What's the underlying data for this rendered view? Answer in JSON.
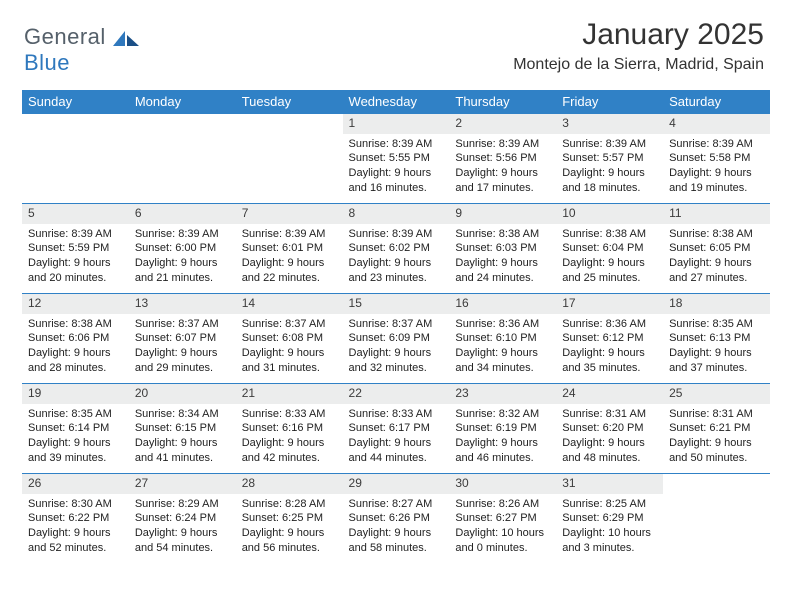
{
  "brand": {
    "part1": "General",
    "part2": "Blue"
  },
  "title": "January 2025",
  "location": "Montejo de la Sierra, Madrid, Spain",
  "colors": {
    "header_bg": "#3081c6",
    "header_text": "#ffffff",
    "daynum_bg": "#eceded",
    "rule": "#3081c6",
    "brand_gray": "#55606a",
    "brand_blue": "#2f78bd"
  },
  "weekday_labels": [
    "Sunday",
    "Monday",
    "Tuesday",
    "Wednesday",
    "Thursday",
    "Friday",
    "Saturday"
  ],
  "weeks": [
    [
      {
        "day": "",
        "sunrise": "",
        "sunset": "",
        "daylight": ""
      },
      {
        "day": "",
        "sunrise": "",
        "sunset": "",
        "daylight": ""
      },
      {
        "day": "",
        "sunrise": "",
        "sunset": "",
        "daylight": ""
      },
      {
        "day": "1",
        "sunrise": "Sunrise: 8:39 AM",
        "sunset": "Sunset: 5:55 PM",
        "daylight": "Daylight: 9 hours and 16 minutes."
      },
      {
        "day": "2",
        "sunrise": "Sunrise: 8:39 AM",
        "sunset": "Sunset: 5:56 PM",
        "daylight": "Daylight: 9 hours and 17 minutes."
      },
      {
        "day": "3",
        "sunrise": "Sunrise: 8:39 AM",
        "sunset": "Sunset: 5:57 PM",
        "daylight": "Daylight: 9 hours and 18 minutes."
      },
      {
        "day": "4",
        "sunrise": "Sunrise: 8:39 AM",
        "sunset": "Sunset: 5:58 PM",
        "daylight": "Daylight: 9 hours and 19 minutes."
      }
    ],
    [
      {
        "day": "5",
        "sunrise": "Sunrise: 8:39 AM",
        "sunset": "Sunset: 5:59 PM",
        "daylight": "Daylight: 9 hours and 20 minutes."
      },
      {
        "day": "6",
        "sunrise": "Sunrise: 8:39 AM",
        "sunset": "Sunset: 6:00 PM",
        "daylight": "Daylight: 9 hours and 21 minutes."
      },
      {
        "day": "7",
        "sunrise": "Sunrise: 8:39 AM",
        "sunset": "Sunset: 6:01 PM",
        "daylight": "Daylight: 9 hours and 22 minutes."
      },
      {
        "day": "8",
        "sunrise": "Sunrise: 8:39 AM",
        "sunset": "Sunset: 6:02 PM",
        "daylight": "Daylight: 9 hours and 23 minutes."
      },
      {
        "day": "9",
        "sunrise": "Sunrise: 8:38 AM",
        "sunset": "Sunset: 6:03 PM",
        "daylight": "Daylight: 9 hours and 24 minutes."
      },
      {
        "day": "10",
        "sunrise": "Sunrise: 8:38 AM",
        "sunset": "Sunset: 6:04 PM",
        "daylight": "Daylight: 9 hours and 25 minutes."
      },
      {
        "day": "11",
        "sunrise": "Sunrise: 8:38 AM",
        "sunset": "Sunset: 6:05 PM",
        "daylight": "Daylight: 9 hours and 27 minutes."
      }
    ],
    [
      {
        "day": "12",
        "sunrise": "Sunrise: 8:38 AM",
        "sunset": "Sunset: 6:06 PM",
        "daylight": "Daylight: 9 hours and 28 minutes."
      },
      {
        "day": "13",
        "sunrise": "Sunrise: 8:37 AM",
        "sunset": "Sunset: 6:07 PM",
        "daylight": "Daylight: 9 hours and 29 minutes."
      },
      {
        "day": "14",
        "sunrise": "Sunrise: 8:37 AM",
        "sunset": "Sunset: 6:08 PM",
        "daylight": "Daylight: 9 hours and 31 minutes."
      },
      {
        "day": "15",
        "sunrise": "Sunrise: 8:37 AM",
        "sunset": "Sunset: 6:09 PM",
        "daylight": "Daylight: 9 hours and 32 minutes."
      },
      {
        "day": "16",
        "sunrise": "Sunrise: 8:36 AM",
        "sunset": "Sunset: 6:10 PM",
        "daylight": "Daylight: 9 hours and 34 minutes."
      },
      {
        "day": "17",
        "sunrise": "Sunrise: 8:36 AM",
        "sunset": "Sunset: 6:12 PM",
        "daylight": "Daylight: 9 hours and 35 minutes."
      },
      {
        "day": "18",
        "sunrise": "Sunrise: 8:35 AM",
        "sunset": "Sunset: 6:13 PM",
        "daylight": "Daylight: 9 hours and 37 minutes."
      }
    ],
    [
      {
        "day": "19",
        "sunrise": "Sunrise: 8:35 AM",
        "sunset": "Sunset: 6:14 PM",
        "daylight": "Daylight: 9 hours and 39 minutes."
      },
      {
        "day": "20",
        "sunrise": "Sunrise: 8:34 AM",
        "sunset": "Sunset: 6:15 PM",
        "daylight": "Daylight: 9 hours and 41 minutes."
      },
      {
        "day": "21",
        "sunrise": "Sunrise: 8:33 AM",
        "sunset": "Sunset: 6:16 PM",
        "daylight": "Daylight: 9 hours and 42 minutes."
      },
      {
        "day": "22",
        "sunrise": "Sunrise: 8:33 AM",
        "sunset": "Sunset: 6:17 PM",
        "daylight": "Daylight: 9 hours and 44 minutes."
      },
      {
        "day": "23",
        "sunrise": "Sunrise: 8:32 AM",
        "sunset": "Sunset: 6:19 PM",
        "daylight": "Daylight: 9 hours and 46 minutes."
      },
      {
        "day": "24",
        "sunrise": "Sunrise: 8:31 AM",
        "sunset": "Sunset: 6:20 PM",
        "daylight": "Daylight: 9 hours and 48 minutes."
      },
      {
        "day": "25",
        "sunrise": "Sunrise: 8:31 AM",
        "sunset": "Sunset: 6:21 PM",
        "daylight": "Daylight: 9 hours and 50 minutes."
      }
    ],
    [
      {
        "day": "26",
        "sunrise": "Sunrise: 8:30 AM",
        "sunset": "Sunset: 6:22 PM",
        "daylight": "Daylight: 9 hours and 52 minutes."
      },
      {
        "day": "27",
        "sunrise": "Sunrise: 8:29 AM",
        "sunset": "Sunset: 6:24 PM",
        "daylight": "Daylight: 9 hours and 54 minutes."
      },
      {
        "day": "28",
        "sunrise": "Sunrise: 8:28 AM",
        "sunset": "Sunset: 6:25 PM",
        "daylight": "Daylight: 9 hours and 56 minutes."
      },
      {
        "day": "29",
        "sunrise": "Sunrise: 8:27 AM",
        "sunset": "Sunset: 6:26 PM",
        "daylight": "Daylight: 9 hours and 58 minutes."
      },
      {
        "day": "30",
        "sunrise": "Sunrise: 8:26 AM",
        "sunset": "Sunset: 6:27 PM",
        "daylight": "Daylight: 10 hours and 0 minutes."
      },
      {
        "day": "31",
        "sunrise": "Sunrise: 8:25 AM",
        "sunset": "Sunset: 6:29 PM",
        "daylight": "Daylight: 10 hours and 3 minutes."
      },
      {
        "day": "",
        "sunrise": "",
        "sunset": "",
        "daylight": ""
      }
    ]
  ]
}
